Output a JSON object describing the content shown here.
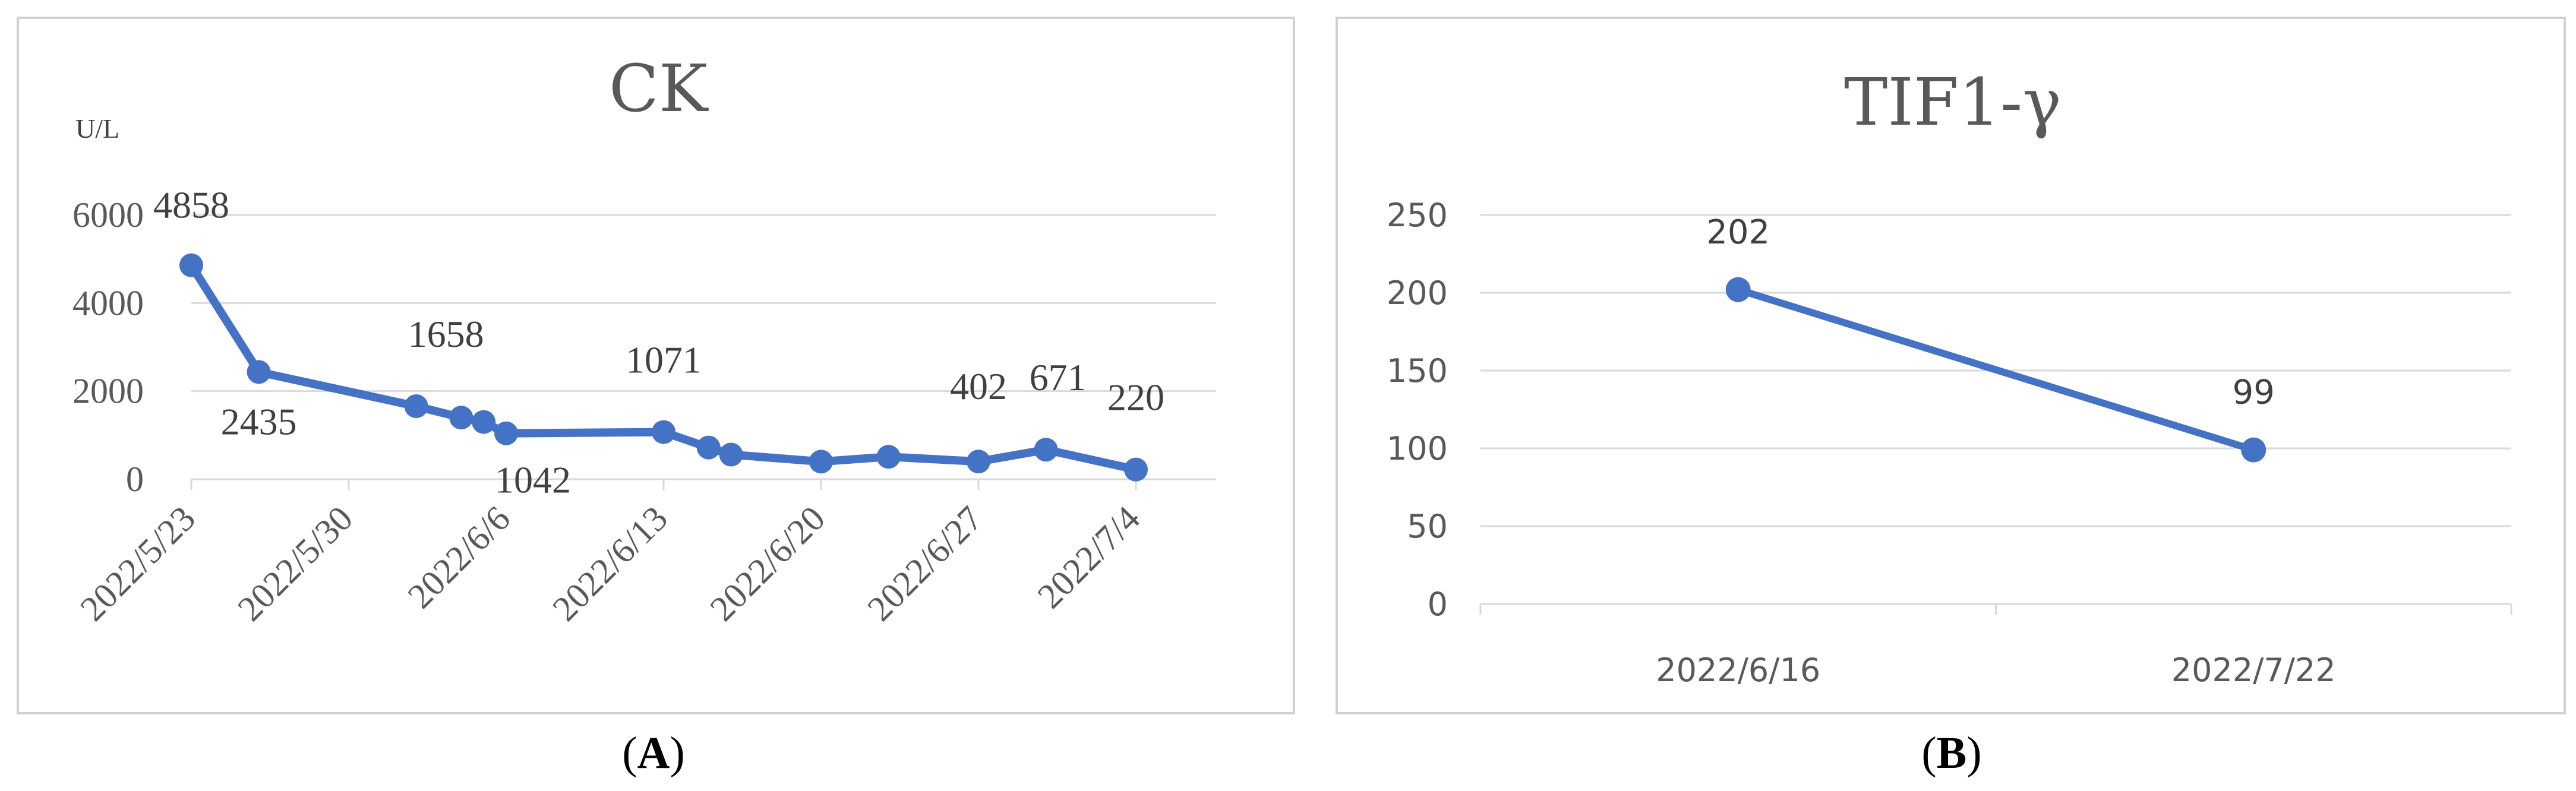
{
  "chart_data": [
    {
      "type": "line",
      "title": "CK",
      "ylabel": "U/L",
      "xlabel": "",
      "ylim": [
        0,
        6000
      ],
      "yticks": [
        "0",
        "2000",
        "4000",
        "6000"
      ],
      "xticks": [
        "2022/5/23",
        "2022/5/30",
        "2022/6/6",
        "2022/6/13",
        "2022/6/20",
        "2022/6/27",
        "2022/7/4"
      ],
      "grid": true,
      "color": "#4472c4",
      "series": [
        {
          "x": [
            "2022/5/23",
            "2022/5/26",
            "2022/6/2",
            "2022/6/4",
            "2022/6/5",
            "2022/6/6",
            "2022/6/13",
            "2022/6/15",
            "2022/6/16",
            "2022/6/20",
            "2022/6/23",
            "2022/6/27",
            "2022/6/30",
            "2022/7/4"
          ],
          "values": [
            4858,
            2435,
            1658,
            1400,
            1300,
            1042,
            1071,
            720,
            560,
            400,
            510,
            402,
            671,
            220
          ]
        }
      ],
      "data_labels": [
        "4858",
        "2435",
        "1658",
        "1042",
        "1071",
        "402",
        "671",
        "220"
      ],
      "caption": "A"
    },
    {
      "type": "line",
      "title": "TIF1-γ",
      "xlabel": "",
      "ylabel": "",
      "ylim": [
        0,
        250
      ],
      "yticks": [
        "0",
        "50",
        "100",
        "150",
        "200",
        "250"
      ],
      "categories": [
        "2022/6/16",
        "2022/7/22"
      ],
      "grid": true,
      "color": "#4472c4",
      "series": [
        {
          "values": [
            202,
            99
          ]
        }
      ],
      "data_labels": [
        "202",
        "99"
      ],
      "caption": "B"
    }
  ]
}
